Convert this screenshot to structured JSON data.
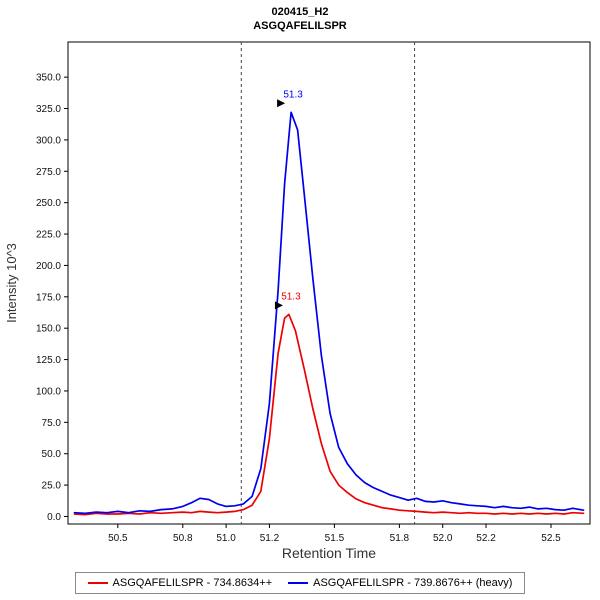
{
  "title": "020415_H2",
  "subtitle": "ASGQAFELILSPR",
  "axes": {
    "x_label": "Retention Time",
    "y_label": "Intensity 10^3"
  },
  "legend": {
    "items": [
      {
        "label": "ASGQAFELILSPR - 734.8634++",
        "color": "#ee0000"
      },
      {
        "label": "ASGQAFELILSPR - 739.8676++ (heavy)",
        "color": "#0000ee"
      }
    ]
  },
  "chart_data": {
    "type": "line",
    "title": "020415_H2",
    "subtitle": "ASGQAFELILSPR",
    "xlabel": "Retention Time",
    "ylabel": "Intensity 10^3",
    "xlim": [
      50.27,
      52.68
    ],
    "ylim": [
      -6,
      378
    ],
    "grid": false,
    "legend_position": "bottom",
    "xticks": [
      50.5,
      50.8,
      51.0,
      51.2,
      51.5,
      51.8,
      52.0,
      52.2,
      52.5
    ],
    "xtick_labels": [
      "50.5",
      "50.8",
      "51.0",
      "51.2",
      "51.5",
      "51.8",
      "52.0",
      "52.2",
      "52.5"
    ],
    "yticks": [
      0,
      25,
      50,
      75,
      100,
      125,
      150,
      175,
      200,
      225,
      250,
      275,
      300,
      325,
      350
    ],
    "ytick_labels": [
      "0.0",
      "25.0",
      "50.0",
      "75.0",
      "100.0",
      "125.0",
      "150.0",
      "175.0",
      "200.0",
      "225.0",
      "250.0",
      "275.0",
      "300.0",
      "325.0",
      "350.0"
    ],
    "integration_boundaries": [
      51.07,
      51.87
    ],
    "units": "Intensity x 10^3 vs minutes",
    "series": [
      {
        "name": "ASGQAFELILSPR - 734.8634++",
        "color": "#ee0000",
        "annotation": {
          "text": "51.3",
          "x": 51.29,
          "y": 161
        },
        "points": [
          [
            50.3,
            2
          ],
          [
            50.35,
            1.5
          ],
          [
            50.4,
            2.5
          ],
          [
            50.45,
            2
          ],
          [
            50.5,
            2
          ],
          [
            50.55,
            2.5
          ],
          [
            50.6,
            2
          ],
          [
            50.65,
            3
          ],
          [
            50.7,
            2.5
          ],
          [
            50.75,
            3
          ],
          [
            50.8,
            3.5
          ],
          [
            50.84,
            3
          ],
          [
            50.88,
            4
          ],
          [
            50.92,
            3.5
          ],
          [
            50.96,
            3
          ],
          [
            51.0,
            3.5
          ],
          [
            51.04,
            4
          ],
          [
            51.08,
            5.5
          ],
          [
            51.12,
            9
          ],
          [
            51.16,
            20
          ],
          [
            51.2,
            62
          ],
          [
            51.24,
            130
          ],
          [
            51.27,
            158
          ],
          [
            51.29,
            161
          ],
          [
            51.32,
            148
          ],
          [
            51.36,
            118
          ],
          [
            51.4,
            86
          ],
          [
            51.44,
            58
          ],
          [
            51.48,
            36
          ],
          [
            51.52,
            25
          ],
          [
            51.56,
            19
          ],
          [
            51.6,
            14
          ],
          [
            51.64,
            11
          ],
          [
            51.68,
            9
          ],
          [
            51.72,
            7
          ],
          [
            51.76,
            6
          ],
          [
            51.8,
            5
          ],
          [
            51.84,
            4.5
          ],
          [
            51.88,
            4
          ],
          [
            51.92,
            3.5
          ],
          [
            51.96,
            3
          ],
          [
            52.0,
            3.5
          ],
          [
            52.04,
            3
          ],
          [
            52.08,
            2.5
          ],
          [
            52.12,
            3
          ],
          [
            52.16,
            2.5
          ],
          [
            52.2,
            2.5
          ],
          [
            52.24,
            2
          ],
          [
            52.28,
            2.5
          ],
          [
            52.32,
            2
          ],
          [
            52.36,
            2.5
          ],
          [
            52.4,
            2
          ],
          [
            52.44,
            2.5
          ],
          [
            52.48,
            2
          ],
          [
            52.52,
            2.5
          ],
          [
            52.56,
            2
          ],
          [
            52.6,
            3
          ],
          [
            52.65,
            2.5
          ]
        ]
      },
      {
        "name": "ASGQAFELILSPR - 739.8676++ (heavy)",
        "color": "#0000ee",
        "annotation": {
          "text": "51.3",
          "x": 51.3,
          "y": 322
        },
        "points": [
          [
            50.3,
            3
          ],
          [
            50.35,
            2.5
          ],
          [
            50.4,
            3.5
          ],
          [
            50.45,
            3
          ],
          [
            50.5,
            4
          ],
          [
            50.55,
            3
          ],
          [
            50.6,
            4.5
          ],
          [
            50.65,
            4
          ],
          [
            50.7,
            5.5
          ],
          [
            50.75,
            6
          ],
          [
            50.8,
            8
          ],
          [
            50.84,
            11
          ],
          [
            50.88,
            14.5
          ],
          [
            50.92,
            13.5
          ],
          [
            50.96,
            10
          ],
          [
            51.0,
            8
          ],
          [
            51.04,
            8.5
          ],
          [
            51.08,
            10
          ],
          [
            51.12,
            16
          ],
          [
            51.16,
            38
          ],
          [
            51.2,
            90
          ],
          [
            51.24,
            180
          ],
          [
            51.27,
            265
          ],
          [
            51.3,
            322
          ],
          [
            51.33,
            308
          ],
          [
            51.36,
            258
          ],
          [
            51.4,
            190
          ],
          [
            51.44,
            128
          ],
          [
            51.48,
            82
          ],
          [
            51.52,
            55
          ],
          [
            51.56,
            42
          ],
          [
            51.6,
            33
          ],
          [
            51.64,
            27
          ],
          [
            51.68,
            23
          ],
          [
            51.72,
            20
          ],
          [
            51.76,
            17
          ],
          [
            51.8,
            15
          ],
          [
            51.84,
            13
          ],
          [
            51.88,
            14.5
          ],
          [
            51.92,
            12
          ],
          [
            51.96,
            11.5
          ],
          [
            52.0,
            12.5
          ],
          [
            52.04,
            11
          ],
          [
            52.08,
            10
          ],
          [
            52.12,
            9
          ],
          [
            52.16,
            8.5
          ],
          [
            52.2,
            8
          ],
          [
            52.24,
            7
          ],
          [
            52.28,
            8
          ],
          [
            52.32,
            7
          ],
          [
            52.36,
            6.5
          ],
          [
            52.4,
            7.5
          ],
          [
            52.44,
            6
          ],
          [
            52.48,
            6.5
          ],
          [
            52.52,
            5.5
          ],
          [
            52.56,
            5
          ],
          [
            52.6,
            6.5
          ],
          [
            52.65,
            5
          ]
        ]
      }
    ]
  }
}
